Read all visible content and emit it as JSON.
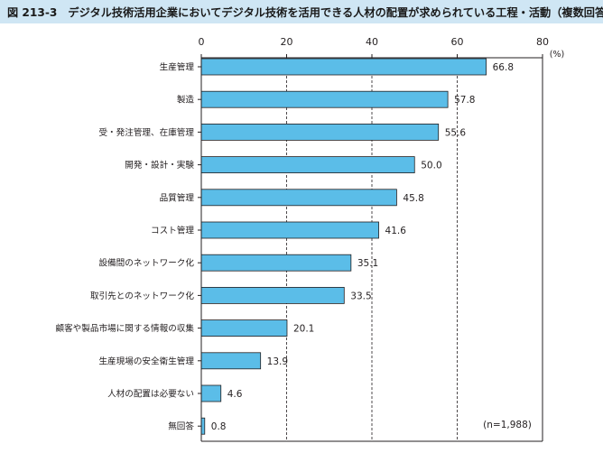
{
  "figure": {
    "number": "図 213-3",
    "title": "デジタル技術活用企業においてデジタル技術を活用できる人材の配置が求められている工程・活動（複数回答）"
  },
  "chart_data": {
    "type": "bar",
    "orientation": "horizontal",
    "categories": [
      "生産管理",
      "製造",
      "受・発注管理、在庫管理",
      "開発・設計・実験",
      "品質管理",
      "コスト管理",
      "設備間のネットワーク化",
      "取引先とのネットワーク化",
      "顧客や製品市場に関する情報の収集",
      "生産現場の安全衛生管理",
      "人材の配置は必要ない",
      "無回答"
    ],
    "values": [
      66.8,
      57.8,
      55.6,
      50.0,
      45.8,
      41.6,
      35.1,
      33.5,
      20.1,
      13.9,
      4.6,
      0.8
    ],
    "value_labels": [
      "66.8",
      "57.8",
      "55.6",
      "50.0",
      "45.8",
      "41.6",
      "35.1",
      "33.5",
      "20.1",
      "13.9",
      "4.6",
      "0.8"
    ],
    "xlim": [
      0,
      80
    ],
    "xticks": [
      0,
      20,
      40,
      60,
      80
    ],
    "unit": "(%)",
    "note": "(n=1,988)",
    "grid": "vertical dashed",
    "bar_color": "#5bbde8",
    "bar_edge_color": "#231f20"
  }
}
